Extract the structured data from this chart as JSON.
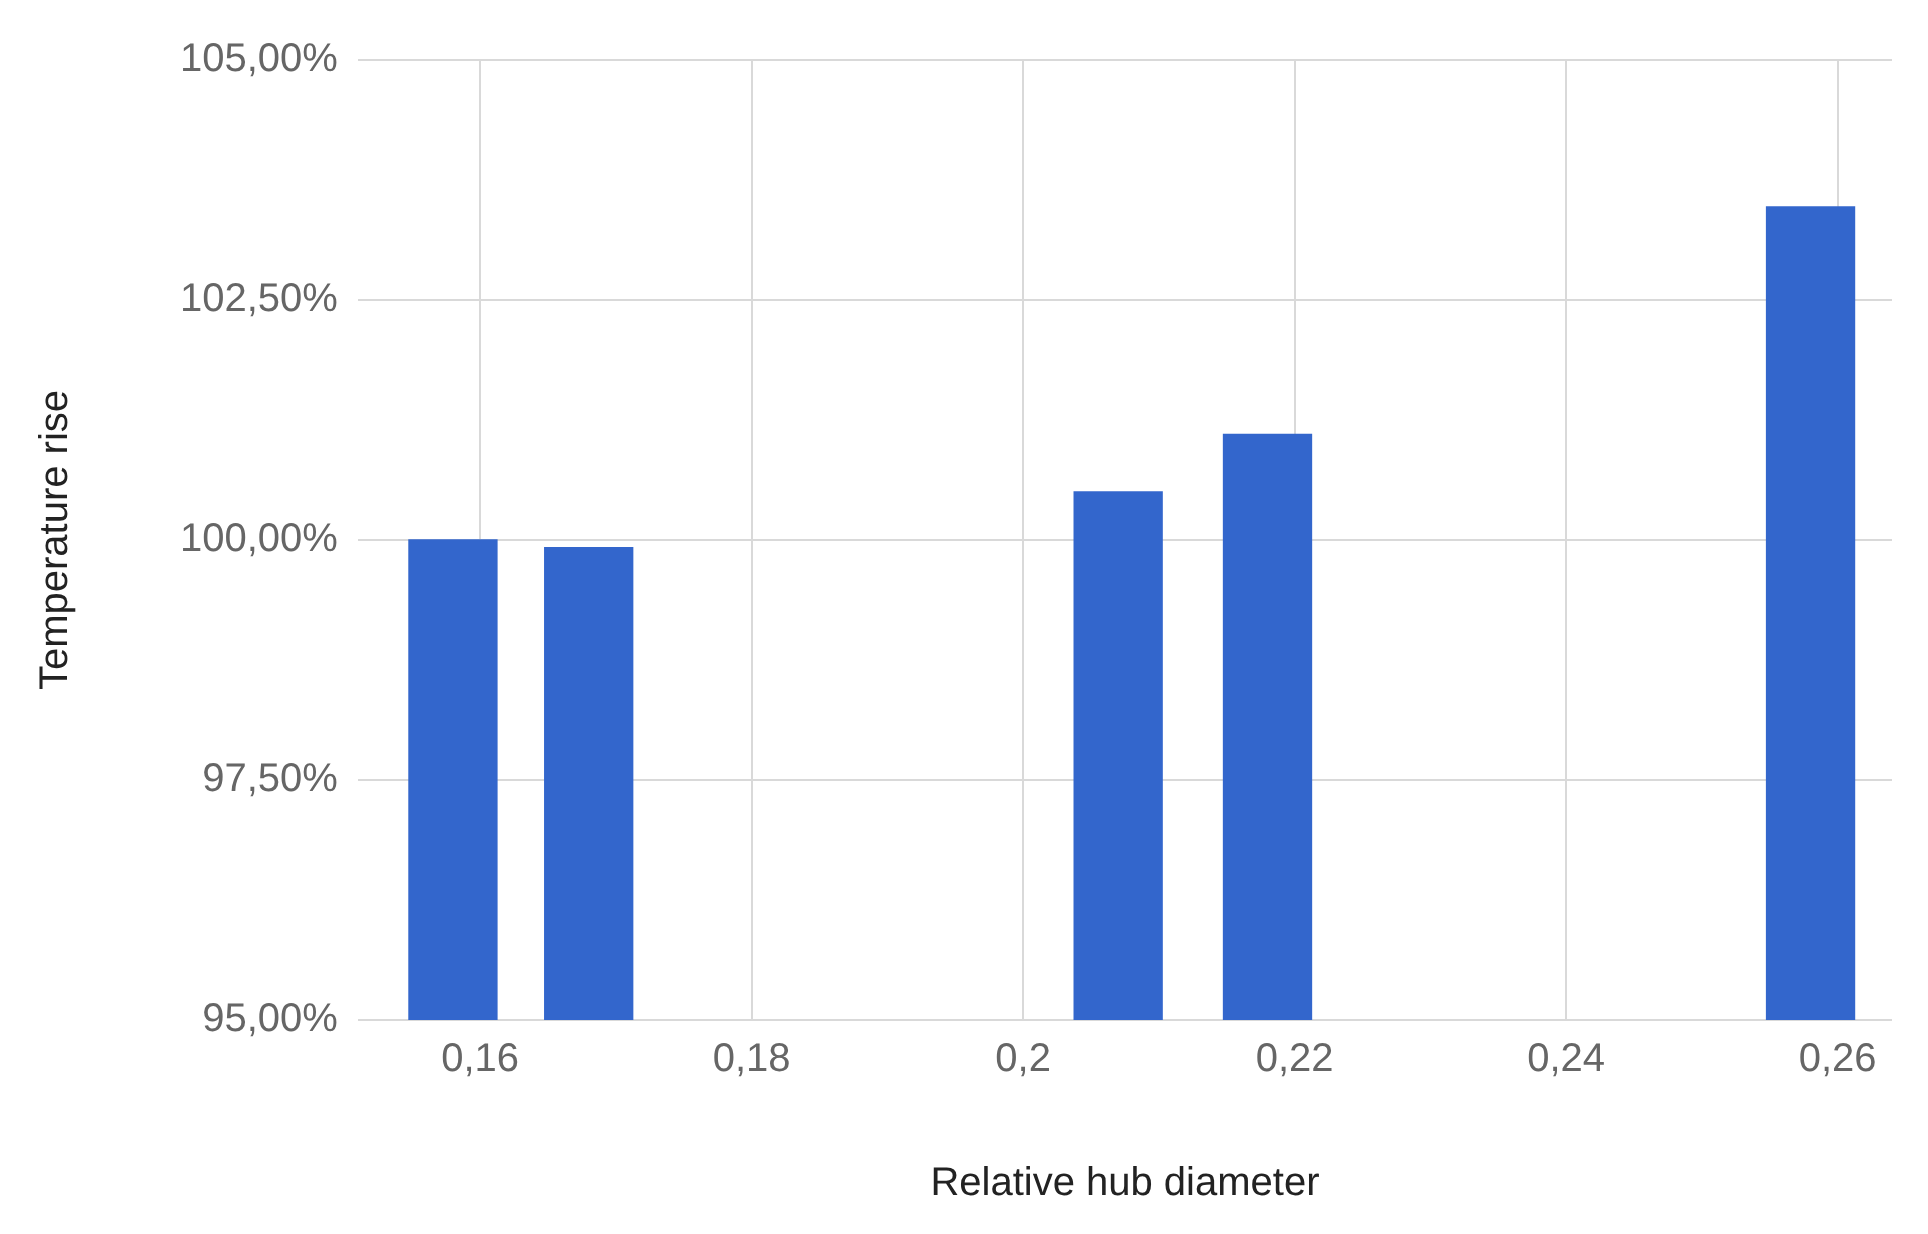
{
  "chart_data": {
    "type": "bar",
    "xlabel": "Relative hub diameter",
    "ylabel": "Temperature rise",
    "x": [
      0.158,
      0.168,
      0.207,
      0.218,
      0.258
    ],
    "values": [
      100.0,
      99.92,
      100.5,
      101.1,
      103.47
    ],
    "color": "#3366cc",
    "xlim": [
      0.151,
      0.264
    ],
    "xticks": [
      {
        "value": 0.16,
        "label": "0,16"
      },
      {
        "value": 0.18,
        "label": "0,18"
      },
      {
        "value": 0.2,
        "label": "0,2"
      },
      {
        "value": 0.22,
        "label": "0,22"
      },
      {
        "value": 0.24,
        "label": "0,24"
      },
      {
        "value": 0.26,
        "label": "0,26"
      }
    ],
    "ylim": [
      95,
      105
    ],
    "yticks": [
      {
        "value": 95,
        "label": "95,00%"
      },
      {
        "value": 97.5,
        "label": "97,50%"
      },
      {
        "value": 100,
        "label": "100,00%"
      },
      {
        "value": 102.5,
        "label": "102,50%"
      },
      {
        "value": 105,
        "label": "105,00%"
      }
    ],
    "grid": true,
    "legend": false
  }
}
